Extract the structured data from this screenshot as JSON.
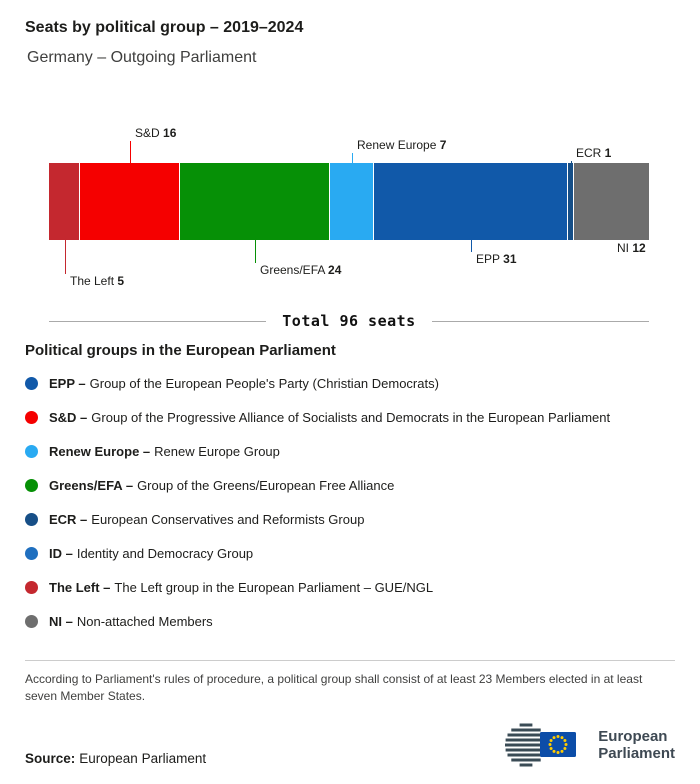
{
  "header": {
    "title": "Seats by political group – 2019–2024",
    "subtitle": "Germany – Outgoing Parliament"
  },
  "chart_data": {
    "type": "bar",
    "variant": "horizontal-stacked",
    "title": "Seats by political group – 2019–2024",
    "subtitle": "Germany – Outgoing Parliament",
    "unit": "seats",
    "total_seats": 96,
    "total_label": "Total 96 seats",
    "segments": [
      {
        "group": "The Left",
        "seats": 5,
        "color": "#C4282F",
        "label_side": "below"
      },
      {
        "group": "S&D",
        "seats": 16,
        "color": "#F50000",
        "label_side": "above"
      },
      {
        "group": "Greens/EFA",
        "seats": 24,
        "color": "#069006",
        "label_side": "below"
      },
      {
        "group": "Renew Europe",
        "seats": 7,
        "color": "#29AAF2",
        "label_side": "above"
      },
      {
        "group": "EPP",
        "seats": 31,
        "color": "#1159A9",
        "label_side": "below"
      },
      {
        "group": "ECR",
        "seats": 1,
        "color": "#174F87",
        "label_side": "above"
      },
      {
        "group": "NI",
        "seats": 12,
        "color": "#6E6E6E",
        "label_side": "below"
      }
    ]
  },
  "legend": {
    "heading": "Political groups in the European Parliament",
    "items": [
      {
        "abbr": "EPP –",
        "description": "Group of the European People's Party (Christian Democrats)",
        "color": "#1159A9"
      },
      {
        "abbr": "S&D –",
        "description": "Group of the Progressive Alliance of Socialists and Democrats in the European Parliament",
        "color": "#F50000"
      },
      {
        "abbr": "Renew Europe –",
        "description": "Renew Europe Group",
        "color": "#29AAF2"
      },
      {
        "abbr": "Greens/EFA –",
        "description": "Group of the Greens/European Free Alliance",
        "color": "#069006"
      },
      {
        "abbr": "ECR –",
        "description": "European Conservatives and Reformists Group",
        "color": "#174F87"
      },
      {
        "abbr": "ID –",
        "description": "Identity and Democracy Group",
        "color": "#1F6FBF"
      },
      {
        "abbr": "The Left –",
        "description": "The Left group in the European Parliament – GUE/NGL",
        "color": "#C4282F"
      },
      {
        "abbr": "NI –",
        "description": "Non-attached Members",
        "color": "#6E6E6E"
      }
    ]
  },
  "footnote": "According to Parliament's rules of procedure, a political group shall consist of at least 23 Members elected in at least seven Member States.",
  "source": {
    "label": "Source:",
    "value": "European Parliament"
  },
  "logo": {
    "alt": "European Parliament",
    "line1": "European",
    "line2": "Parliament"
  }
}
